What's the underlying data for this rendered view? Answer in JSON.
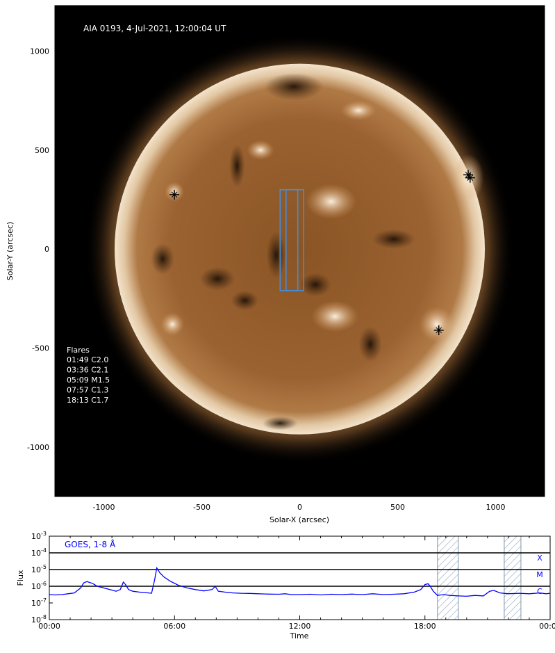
{
  "chart_data": [
    {
      "type": "image-map",
      "title": "AIA 0193, 4-Jul-2021, 12:00:04 UT",
      "xlabel": "Solar-X (arcsec)",
      "ylabel": "Solar-Y (arcsec)",
      "xlim": [
        -1250,
        1250
      ],
      "ylim": [
        -1250,
        1230
      ],
      "xticks": [
        -1000,
        -500,
        0,
        500,
        1000
      ],
      "yticks": [
        1000,
        500,
        0,
        -500,
        -1000
      ],
      "xtick_labels": [
        "-1000",
        "-500",
        "0",
        "500",
        "1000"
      ],
      "ytick_labels": [
        "1000",
        "500",
        "0",
        "-500",
        "-1000"
      ],
      "solar_radius_arcsec": 945,
      "flare_list_title": "Flares",
      "flare_list": [
        "01:49 C2.0",
        "03:36 C2.1",
        "05:09 M1.5",
        "07:57 C1.3",
        "18:13 C1.7"
      ],
      "flare_markers": [
        {
          "x": -640,
          "y": 275
        },
        {
          "x": 860,
          "y": 375
        },
        {
          "x": 870,
          "y": 360
        },
        {
          "x": 710,
          "y": -410
        }
      ],
      "slit_boxes": [
        {
          "x0": -100,
          "x1": 20,
          "y0": -210,
          "y1": 300
        },
        {
          "x0": -70,
          "x1": -10,
          "y0": -210,
          "y1": 300
        }
      ],
      "box_color": "#3d8fe0",
      "marker_color": "#000000",
      "title_color": "#ffffff"
    },
    {
      "type": "line",
      "title": "GOES, 1-8 Å",
      "title_color": "#0000ff",
      "xlabel": "Time",
      "ylabel": "Flux",
      "scale_y": "log",
      "ylim_exp": [
        -8,
        -3
      ],
      "ytick_labels": [
        {
          "base": "10",
          "exp": "-3"
        },
        {
          "base": "10",
          "exp": "-4"
        },
        {
          "base": "10",
          "exp": "-5"
        },
        {
          "base": "10",
          "exp": "-6"
        },
        {
          "base": "10",
          "exp": "-7"
        },
        {
          "base": "10",
          "exp": "-8"
        }
      ],
      "xlim_hours": [
        0,
        24
      ],
      "xticks_hours": [
        0,
        6,
        12,
        18,
        24
      ],
      "xtick_labels": [
        "00:00",
        "06:00",
        "12:00",
        "18:00",
        "00:00"
      ],
      "class_lines": [
        {
          "label": "X",
          "log_flux": -4
        },
        {
          "label": "M",
          "log_flux": -5
        },
        {
          "label": "C",
          "log_flux": -6
        }
      ],
      "class_label_color": "#0000ff",
      "hatched_intervals_hours": [
        [
          18.6,
          19.6
        ],
        [
          21.8,
          22.6
        ]
      ],
      "series": [
        {
          "color": "#0000ff",
          "x_hours": [
            0.0,
            0.3,
            0.6,
            0.9,
            1.2,
            1.5,
            1.65,
            1.8,
            1.95,
            2.1,
            2.3,
            2.6,
            2.9,
            3.2,
            3.4,
            3.55,
            3.65,
            3.8,
            4.0,
            4.3,
            4.6,
            4.9,
            5.05,
            5.15,
            5.3,
            5.5,
            5.8,
            6.2,
            6.6,
            7.0,
            7.4,
            7.8,
            7.95,
            8.1,
            8.4,
            8.8,
            9.2,
            9.6,
            10.0,
            10.5,
            11.0,
            11.3,
            11.6,
            12.0,
            12.5,
            13.0,
            13.5,
            14.0,
            14.5,
            15.0,
            15.5,
            16.0,
            16.5,
            17.0,
            17.5,
            17.8,
            18.0,
            18.15,
            18.25,
            18.4,
            18.6,
            18.9,
            19.2,
            19.6,
            20.0,
            20.4,
            20.8,
            21.1,
            21.3,
            21.6,
            22.0,
            22.5,
            23.0,
            23.5,
            23.8,
            24.0
          ],
          "log_flux": [
            -6.5,
            -6.52,
            -6.5,
            -6.45,
            -6.4,
            -6.1,
            -5.8,
            -5.72,
            -5.78,
            -5.85,
            -6.0,
            -6.1,
            -6.2,
            -6.3,
            -6.2,
            -5.75,
            -5.9,
            -6.2,
            -6.3,
            -6.35,
            -6.38,
            -6.42,
            -5.6,
            -4.9,
            -5.2,
            -5.45,
            -5.7,
            -5.95,
            -6.1,
            -6.2,
            -6.28,
            -6.2,
            -6.0,
            -6.3,
            -6.35,
            -6.4,
            -6.42,
            -6.43,
            -6.45,
            -6.47,
            -6.48,
            -6.45,
            -6.5,
            -6.5,
            -6.48,
            -6.52,
            -6.48,
            -6.5,
            -6.47,
            -6.5,
            -6.45,
            -6.5,
            -6.48,
            -6.45,
            -6.35,
            -6.2,
            -5.9,
            -5.85,
            -6.0,
            -6.3,
            -6.55,
            -6.5,
            -6.55,
            -6.58,
            -6.6,
            -6.55,
            -6.58,
            -6.3,
            -6.25,
            -6.4,
            -6.45,
            -6.42,
            -6.45,
            -6.4,
            -6.45,
            -6.42
          ]
        }
      ]
    }
  ]
}
